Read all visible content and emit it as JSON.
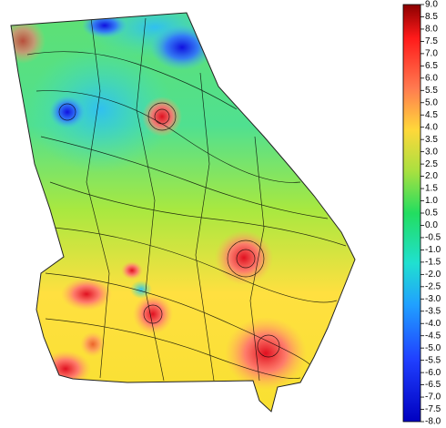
{
  "map": {
    "colorbar": {
      "range": [
        -8,
        9
      ],
      "ticks": [
        {
          "value": 9,
          "label": "9.0"
        },
        {
          "value": 8.5,
          "label": "8.5"
        },
        {
          "value": 8,
          "label": "8.0"
        },
        {
          "value": 7.5,
          "label": "7.5"
        },
        {
          "value": 7,
          "label": "7.0"
        },
        {
          "value": 6.5,
          "label": "6.5"
        },
        {
          "value": 6,
          "label": "6.0"
        },
        {
          "value": 5.5,
          "label": "5.5"
        },
        {
          "value": 5,
          "label": "5.0"
        },
        {
          "value": 4.5,
          "label": "4.5"
        },
        {
          "value": 4,
          "label": "4.0"
        },
        {
          "value": 3.5,
          "label": "3.5"
        },
        {
          "value": 3,
          "label": "3.0"
        },
        {
          "value": 2.5,
          "label": "2.5"
        },
        {
          "value": 2,
          "label": "2.0"
        },
        {
          "value": 1.5,
          "label": "1.5"
        },
        {
          "value": 1,
          "label": "1.0"
        },
        {
          "value": 0.5,
          "label": "0.5"
        },
        {
          "value": 0,
          "label": "0.0"
        },
        {
          "value": -0.5,
          "label": "-0.5"
        },
        {
          "value": -1,
          "label": "-1.0"
        },
        {
          "value": -1.5,
          "label": "-1.5"
        },
        {
          "value": -2,
          "label": "-2.0"
        },
        {
          "value": -2.5,
          "label": "-2.5"
        },
        {
          "value": -3,
          "label": "-3.0"
        },
        {
          "value": -3.5,
          "label": "-3.5"
        },
        {
          "value": -4,
          "label": "-4.0"
        },
        {
          "value": -4.5,
          "label": "-4.5"
        },
        {
          "value": -5,
          "label": "-5.0"
        },
        {
          "value": -5.5,
          "label": "-5.5"
        },
        {
          "value": -6,
          "label": "-6.0"
        },
        {
          "value": -6.5,
          "label": "-6.5"
        },
        {
          "value": -7,
          "label": "-7.0"
        },
        {
          "value": -7.5,
          "label": "-7.5"
        },
        {
          "value": -8,
          "label": "-8.0"
        }
      ]
    }
  }
}
